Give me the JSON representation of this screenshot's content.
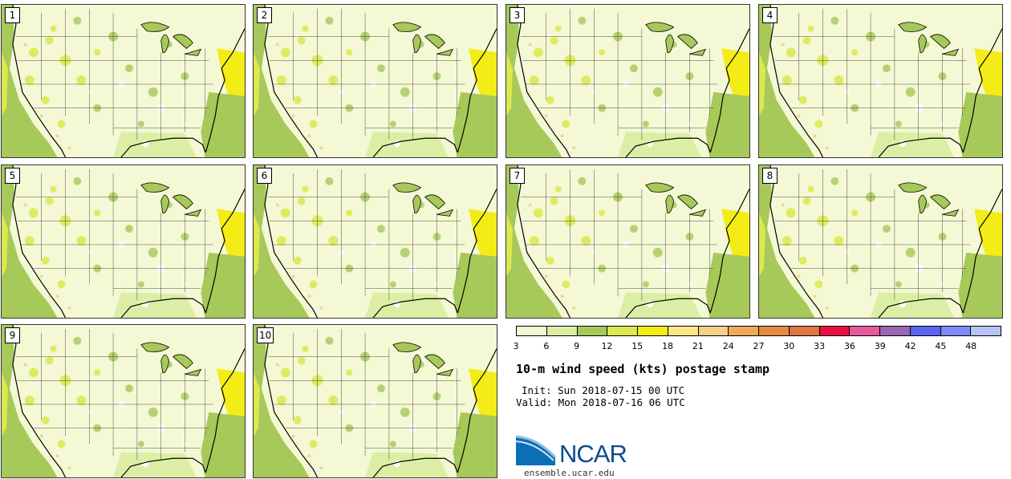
{
  "panels": [
    {
      "label": "1"
    },
    {
      "label": "2"
    },
    {
      "label": "3"
    },
    {
      "label": "4"
    },
    {
      "label": "5"
    },
    {
      "label": "6"
    },
    {
      "label": "7"
    },
    {
      "label": "8"
    },
    {
      "label": "9"
    },
    {
      "label": "10"
    }
  ],
  "colorbar": {
    "ticks": [
      "3",
      "6",
      "9",
      "12",
      "15",
      "18",
      "21",
      "24",
      "27",
      "30",
      "33",
      "36",
      "39",
      "42",
      "45",
      "48"
    ],
    "colors": [
      "#f4f8d4",
      "#dceea6",
      "#a6c95a",
      "#dbe94e",
      "#f4ec16",
      "#fbe885",
      "#f6cf8a",
      "#eeaa5a",
      "#e68c3e",
      "#dd7640",
      "#e80f42",
      "#e65aa0",
      "#9a67b2",
      "#5a66f0",
      "#7f8cf5",
      "#b6c3f5"
    ]
  },
  "title": "10-m wind speed (kts) postage stamp",
  "init": "Init: Sun 2018-07-15 00 UTC",
  "valid": "Valid: Mon 2018-07-16 06 UTC",
  "logo": {
    "text": "NCAR",
    "url": "ensemble.ucar.edu"
  }
}
